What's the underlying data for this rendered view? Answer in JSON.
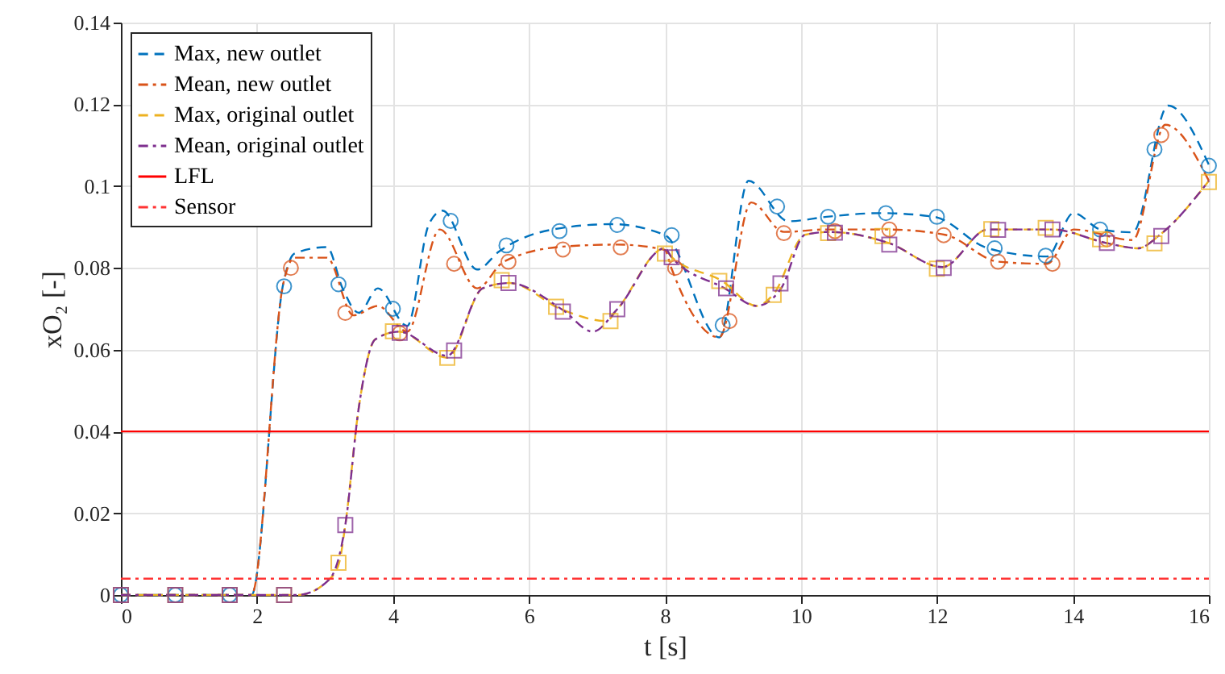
{
  "chart_data": {
    "type": "line",
    "xlabel": "t [s]",
    "ylabel": "xO₂ [-]",
    "xlim": [
      0,
      16
    ],
    "ylim": [
      0,
      0.14
    ],
    "xticks": [
      0,
      2,
      4,
      6,
      8,
      10,
      12,
      14,
      16
    ],
    "yticks": [
      0,
      0.02,
      0.04,
      0.06,
      0.08,
      0.1,
      0.12,
      0.14
    ],
    "grid": true,
    "legend": "top left",
    "series": [
      {
        "name": "Max, new outlet",
        "color": "#0072bd",
        "line_style": "dashed",
        "x": [
          0,
          1.92,
          2.39,
          2.55,
          3.03,
          3.26,
          3.5,
          3.78,
          4.21,
          4.53,
          4.73,
          5.24,
          5.56,
          6.35,
          7.22,
          8.0,
          8.8,
          9.23,
          9.82,
          10.38,
          11.17,
          11.96,
          12.75,
          13.62,
          14.01,
          14.41,
          14.88,
          15.4,
          16.0
        ],
        "values": [
          0,
          0,
          0.0763,
          0.0835,
          0.0851,
          0.075,
          0.069,
          0.075,
          0.0658,
          0.0907,
          0.094,
          0.0796,
          0.084,
          0.0894,
          0.0907,
          0.088,
          0.063,
          0.1013,
          0.0914,
          0.0925,
          0.0934,
          0.0925,
          0.0848,
          0.0828,
          0.0934,
          0.0894,
          0.0887,
          0.1197,
          0.1052
        ]
      },
      {
        "name": "Mean, new outlet",
        "color": "#d95319",
        "line_style": "dashdot",
        "x": [
          0,
          1.92,
          2.39,
          2.55,
          3.03,
          3.42,
          3.78,
          4.21,
          4.69,
          5.24,
          5.63,
          6.5,
          7.3,
          8.0,
          8.09,
          8.8,
          9.27,
          9.75,
          10.38,
          11.25,
          12.12,
          12.91,
          13.62,
          14.01,
          14.88,
          15.36,
          16.0
        ],
        "values": [
          0,
          0,
          0.0763,
          0.0825,
          0.0825,
          0.0684,
          0.0707,
          0.0644,
          0.0894,
          0.075,
          0.0815,
          0.0852,
          0.0857,
          0.0844,
          0.0802,
          0.063,
          0.096,
          0.0888,
          0.0894,
          0.0894,
          0.0881,
          0.0815,
          0.081,
          0.0894,
          0.0868,
          0.115,
          0.1013
        ]
      },
      {
        "name": "Max, original outlet",
        "color": "#edb120",
        "line_style": "dashed",
        "x": [
          0,
          2.6,
          3.07,
          3.21,
          3.3,
          3.5,
          3.74,
          4.09,
          4.8,
          5.32,
          5.71,
          6.5,
          7.14,
          7.3,
          8.0,
          8.09,
          8.84,
          9.35,
          9.59,
          10.06,
          10.42,
          11.29,
          12.08,
          12.75,
          13.7,
          14.49,
          14.96,
          15.28,
          16.0
        ],
        "values": [
          0,
          0,
          0.0039,
          0.0079,
          0.0171,
          0.046,
          0.0625,
          0.0644,
          0.058,
          0.075,
          0.0763,
          0.0697,
          0.067,
          0.0699,
          0.0848,
          0.0828,
          0.0768,
          0.0707,
          0.0734,
          0.0881,
          0.0888,
          0.0861,
          0.0802,
          0.0894,
          0.0894,
          0.0861,
          0.0848,
          0.0881,
          0.1013
        ]
      },
      {
        "name": "Mean, original outlet",
        "color": "#7e2f8e",
        "line_style": "dashdot",
        "x": [
          0,
          2.6,
          3.07,
          3.3,
          3.5,
          3.74,
          4.09,
          4.8,
          5.32,
          5.71,
          6.5,
          6.94,
          7.3,
          8.0,
          8.09,
          8.88,
          9.35,
          9.71,
          10.06,
          10.42,
          11.29,
          12.08,
          12.75,
          13.7,
          14.49,
          14.96,
          15.28,
          16.0
        ],
        "values": [
          0,
          0,
          0.0039,
          0.0171,
          0.046,
          0.0625,
          0.0644,
          0.0585,
          0.075,
          0.0763,
          0.0697,
          0.0644,
          0.0699,
          0.0848,
          0.0828,
          0.075,
          0.0707,
          0.075,
          0.0881,
          0.0888,
          0.0861,
          0.0802,
          0.0894,
          0.0894,
          0.0861,
          0.0848,
          0.0881,
          0.1013
        ]
      },
      {
        "type": "scatter",
        "marker": "circle",
        "color": "#0072bd",
        "x": [
          0,
          0.8,
          1.6,
          2.4,
          3.2,
          4.0,
          4.85,
          5.67,
          6.45,
          7.3,
          8.1,
          8.85,
          9.65,
          10.4,
          11.25,
          12.0,
          12.85,
          13.6,
          14.4,
          15.2,
          16.0
        ],
        "values": [
          0,
          0,
          0,
          0.0755,
          0.076,
          0.07,
          0.0915,
          0.0855,
          0.089,
          0.0905,
          0.088,
          0.066,
          0.095,
          0.0925,
          0.0934,
          0.0925,
          0.0848,
          0.083,
          0.0894,
          0.109,
          0.105
        ]
      },
      {
        "type": "scatter",
        "marker": "circle",
        "color": "#d95319",
        "x": [
          2.5,
          3.3,
          4.1,
          4.9,
          5.7,
          6.5,
          7.35,
          8.15,
          8.95,
          9.75,
          10.5,
          11.3,
          12.1,
          12.9,
          13.7,
          14.5,
          15.3
        ],
        "values": [
          0.08,
          0.069,
          0.064,
          0.081,
          0.0815,
          0.0845,
          0.085,
          0.08,
          0.067,
          0.0885,
          0.089,
          0.0894,
          0.088,
          0.0815,
          0.081,
          0.087,
          0.1125
        ]
      },
      {
        "type": "scatter",
        "marker": "square",
        "color": "#edb120",
        "x": [
          0,
          0.8,
          1.6,
          2.4,
          3.2,
          4.0,
          4.8,
          5.6,
          6.4,
          7.2,
          8.0,
          8.8,
          9.6,
          10.4,
          11.2,
          12.0,
          12.8,
          13.6,
          14.4,
          15.2,
          16.0
        ],
        "values": [
          0,
          0,
          0,
          0,
          0.0079,
          0.0645,
          0.058,
          0.077,
          0.0705,
          0.067,
          0.0835,
          0.0768,
          0.0734,
          0.0885,
          0.0878,
          0.0798,
          0.0895,
          0.0898,
          0.087,
          0.086,
          0.101
        ]
      },
      {
        "type": "scatter",
        "marker": "square",
        "color": "#7e2f8e",
        "x": [
          0,
          0.8,
          1.6,
          2.4,
          3.3,
          4.1,
          4.9,
          5.7,
          6.5,
          7.3,
          8.1,
          8.9,
          9.7,
          10.5,
          11.3,
          12.1,
          12.9,
          13.7,
          14.5,
          15.3
        ],
        "values": [
          0,
          0,
          0,
          0,
          0.0171,
          0.0641,
          0.0598,
          0.0763,
          0.0693,
          0.0699,
          0.0826,
          0.075,
          0.0762,
          0.0886,
          0.0857,
          0.08,
          0.0893,
          0.0894,
          0.0861,
          0.0878
        ]
      }
    ],
    "ref_lines": [
      {
        "axis": "y",
        "value": 0.04,
        "label": "LFL",
        "color": "#ff0000",
        "line_style": "solid"
      },
      {
        "axis": "y",
        "value": 0.004,
        "label": "Sensor",
        "color": "#ff3333",
        "line_style": "dashdot"
      }
    ]
  }
}
